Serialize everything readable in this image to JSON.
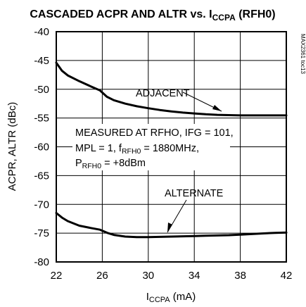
{
  "chart_data": {
    "type": "line",
    "title": {
      "main": "CASCADED ACPR AND ALTR vs. I",
      "sub": "CCPA",
      "tail": " (RFH0)"
    },
    "xlabel": {
      "main": "I",
      "sub": "CCPA",
      "tail": " (mA)"
    },
    "ylabel": "ACPR, ALTR (dBc)",
    "xlim": [
      22,
      42
    ],
    "ylim": [
      -80,
      -40
    ],
    "x_ticks": [
      22,
      26,
      30,
      34,
      38,
      42
    ],
    "y_ticks": [
      -40,
      -45,
      -50,
      -55,
      -60,
      -65,
      -70,
      -75,
      -80
    ],
    "grid": true,
    "watermark": "MAX2361 toc13",
    "series": [
      {
        "name": "ADJACENT",
        "x": [
          22,
          22.5,
          23,
          24,
          25,
          25.8,
          26.4,
          27,
          28,
          29,
          30,
          31,
          32,
          33,
          34,
          35,
          36,
          37,
          38,
          39,
          40,
          41,
          42
        ],
        "y": [
          -45.4,
          -46.8,
          -47.6,
          -48.6,
          -49.5,
          -50.2,
          -51.3,
          -51.9,
          -52.5,
          -52.95,
          -53.3,
          -53.6,
          -53.85,
          -54.05,
          -54.2,
          -54.35,
          -54.45,
          -54.5,
          -54.55,
          -54.55,
          -54.55,
          -54.55,
          -54.55
        ]
      },
      {
        "name": "ALTERNATE",
        "x": [
          22,
          22.5,
          23,
          24,
          25,
          25.8,
          26.5,
          27,
          28,
          29,
          30,
          31,
          32,
          33,
          34,
          35,
          36,
          37,
          38,
          39,
          40,
          41,
          42
        ],
        "y": [
          -71.5,
          -72.3,
          -72.9,
          -73.7,
          -74.1,
          -74.4,
          -75.0,
          -75.3,
          -75.6,
          -75.7,
          -75.7,
          -75.65,
          -75.6,
          -75.55,
          -75.5,
          -75.45,
          -75.4,
          -75.35,
          -75.25,
          -75.15,
          -75.05,
          -74.95,
          -74.9
        ]
      }
    ],
    "annotations": {
      "adjacent_label": "ADJACENT",
      "alternate_label": "ALTERNATE",
      "conditions": {
        "line1": "MEASURED AT RFHO, IFG = 101,",
        "line2_pre": "MPL = 1, f",
        "line2_sub": "RFH0",
        "line2_post": " = 1880MHz,",
        "line3_pre": "P",
        "line3_sub": "RFH0",
        "line3_post": " = +8dBm"
      }
    }
  }
}
